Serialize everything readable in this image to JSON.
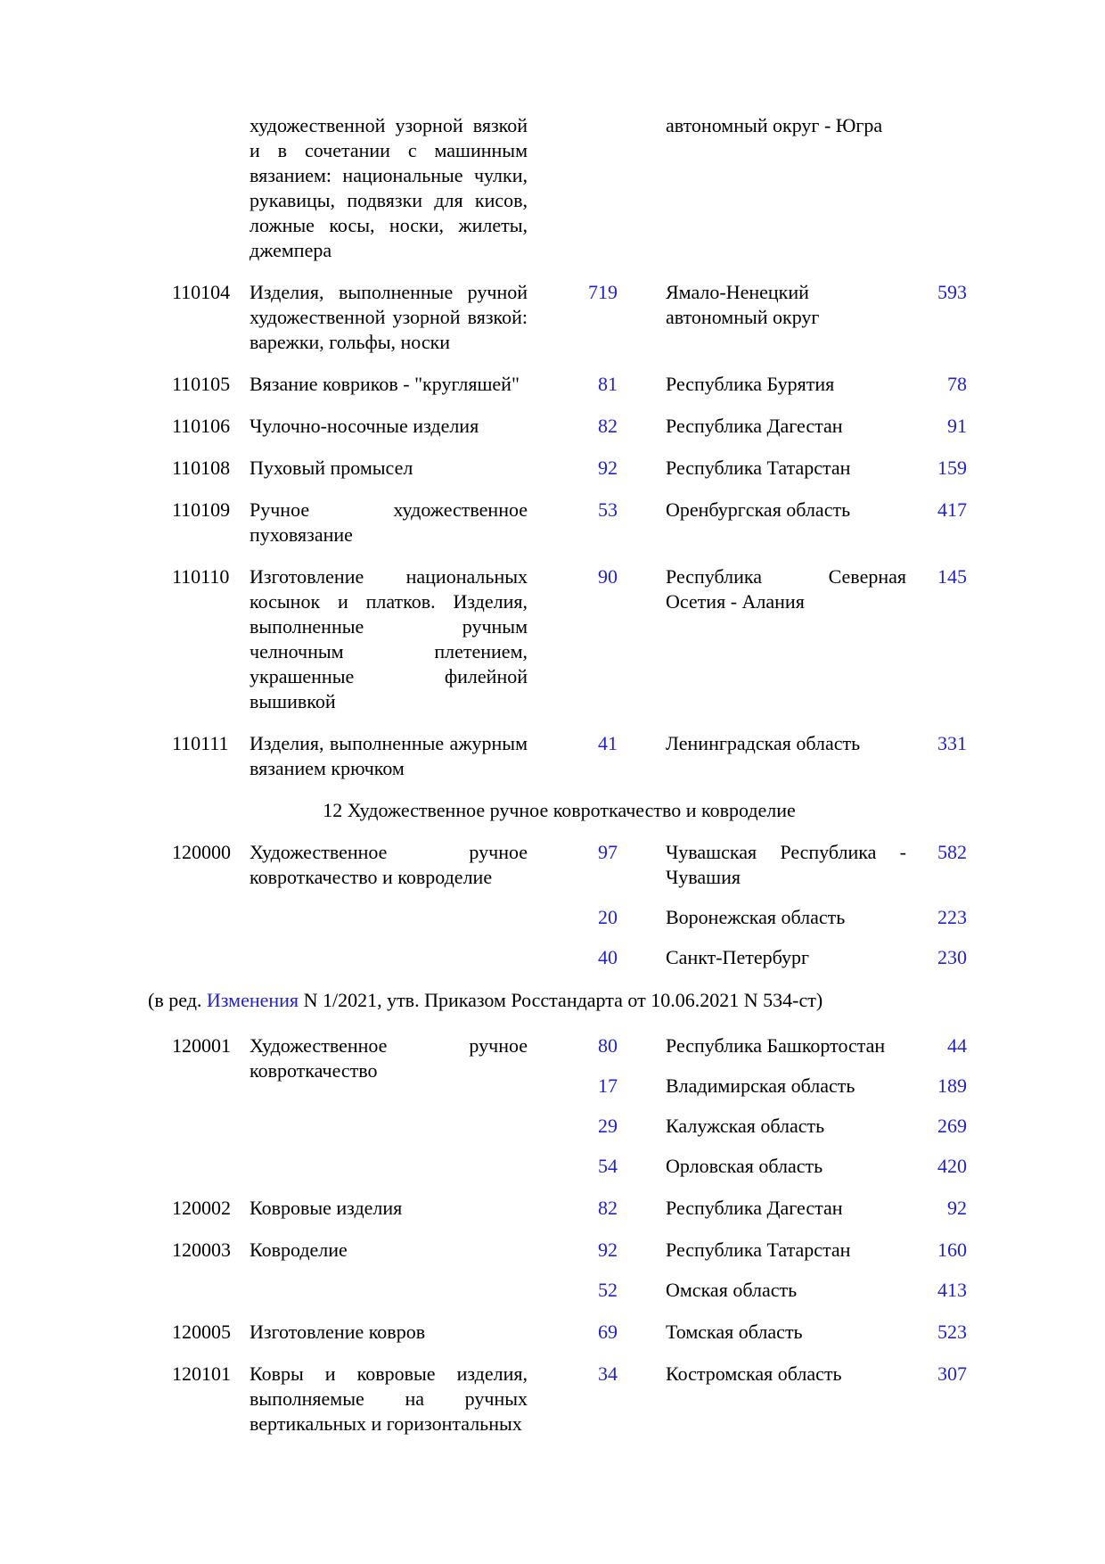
{
  "page": {
    "text_color": "#000000",
    "link_color": "#2222CC",
    "background": "#ffffff"
  },
  "blocks": [
    {
      "code": "",
      "desc": "художественной узорной вязкой и в сочетании с машинным вязанием: национальные чулки, рукавицы, подвязки для кисов, ложные косы, носки, жилеты, джемпера",
      "entries": [
        {
          "num1": "",
          "region": "автономный округ - Югра",
          "num2": ""
        }
      ]
    },
    {
      "code": "110104",
      "desc": "Изделия, выполненные ручной художественной узорной вязкой: варежки, гольфы, носки",
      "entries": [
        {
          "num1": "719",
          "region": "Ямало-Ненецкий автономный округ",
          "num2": "593"
        }
      ]
    },
    {
      "code": "110105",
      "desc": "Вязание ковриков - \"кругляшей\"",
      "entries": [
        {
          "num1": "81",
          "region": "Республика Бурятия",
          "num2": "78"
        }
      ]
    },
    {
      "code": "110106",
      "desc": "Чулочно-носочные изделия",
      "entries": [
        {
          "num1": "82",
          "region": "Республика Дагестан",
          "num2": "91"
        }
      ]
    },
    {
      "code": "110108",
      "desc": "Пуховый промысел",
      "entries": [
        {
          "num1": "92",
          "region": "Республика Татарстан",
          "num2": "159"
        }
      ]
    },
    {
      "code": "110109",
      "desc": "Ручное художественное пуховязание",
      "entries": [
        {
          "num1": "53",
          "region": "Оренбургская область",
          "num2": "417"
        }
      ]
    },
    {
      "code": "110110",
      "desc": "Изготовление национальных косынок и платков. Изделия, выполненные ручным челночным плетением, украшенные филейной вышивкой",
      "entries": [
        {
          "num1": "90",
          "region": "Республика Северная Осетия - Алания",
          "num2": "145"
        }
      ]
    },
    {
      "code": "110111",
      "desc": "Изделия, выполненные ажурным вязанием крючком",
      "entries": [
        {
          "num1": "41",
          "region": "Ленинградская область",
          "num2": "331"
        }
      ]
    },
    {
      "text": "12 Художественное ручное ковроткачество и ковроделие"
    },
    {
      "code": "120000",
      "desc": "Художественное ручное ковроткачество и ковроделие",
      "entries": [
        {
          "num1": "97",
          "region": "Чувашская Республика - Чувашия",
          "num2": "582"
        },
        {
          "num1": "20",
          "region": "Воронежская область",
          "num2": "223"
        },
        {
          "num1": "40",
          "region": "Санкт-Петербург",
          "num2": "230"
        }
      ]
    },
    {
      "prefix": "(в ред. ",
      "link": "Изменения",
      "suffix": " N 1/2021, утв. Приказом Росстандарта от 10.06.2021 N 534-ст)"
    },
    {
      "code": "120001",
      "desc": "Художественное ручное ковроткачество",
      "entries": [
        {
          "num1": "80",
          "region": "Республика Башкортостан",
          "num2": "44"
        },
        {
          "num1": "17",
          "region": "Владимирская область",
          "num2": "189"
        },
        {
          "num1": "29",
          "region": "Калужская область",
          "num2": "269"
        },
        {
          "num1": "54",
          "region": "Орловская область",
          "num2": "420"
        }
      ]
    },
    {
      "code": "120002",
      "desc": "Ковровые изделия",
      "entries": [
        {
          "num1": "82",
          "region": "Республика Дагестан",
          "num2": "92"
        }
      ]
    },
    {
      "code": "120003",
      "desc": "Ковроделие",
      "entries": [
        {
          "num1": "92",
          "region": "Республика Татарстан",
          "num2": "160"
        },
        {
          "num1": "52",
          "region": "Омская область",
          "num2": "413"
        }
      ]
    },
    {
      "code": "120005",
      "desc": "Изготовление ковров",
      "entries": [
        {
          "num1": "69",
          "region": "Томская область",
          "num2": "523"
        }
      ]
    },
    {
      "code": "120101",
      "desc": "Ковры и ковровые изделия, выполняемые на ручных вертикальных и горизонтальных",
      "entries": [
        {
          "num1": "34",
          "region": "Костромская область",
          "num2": "307"
        }
      ]
    }
  ]
}
